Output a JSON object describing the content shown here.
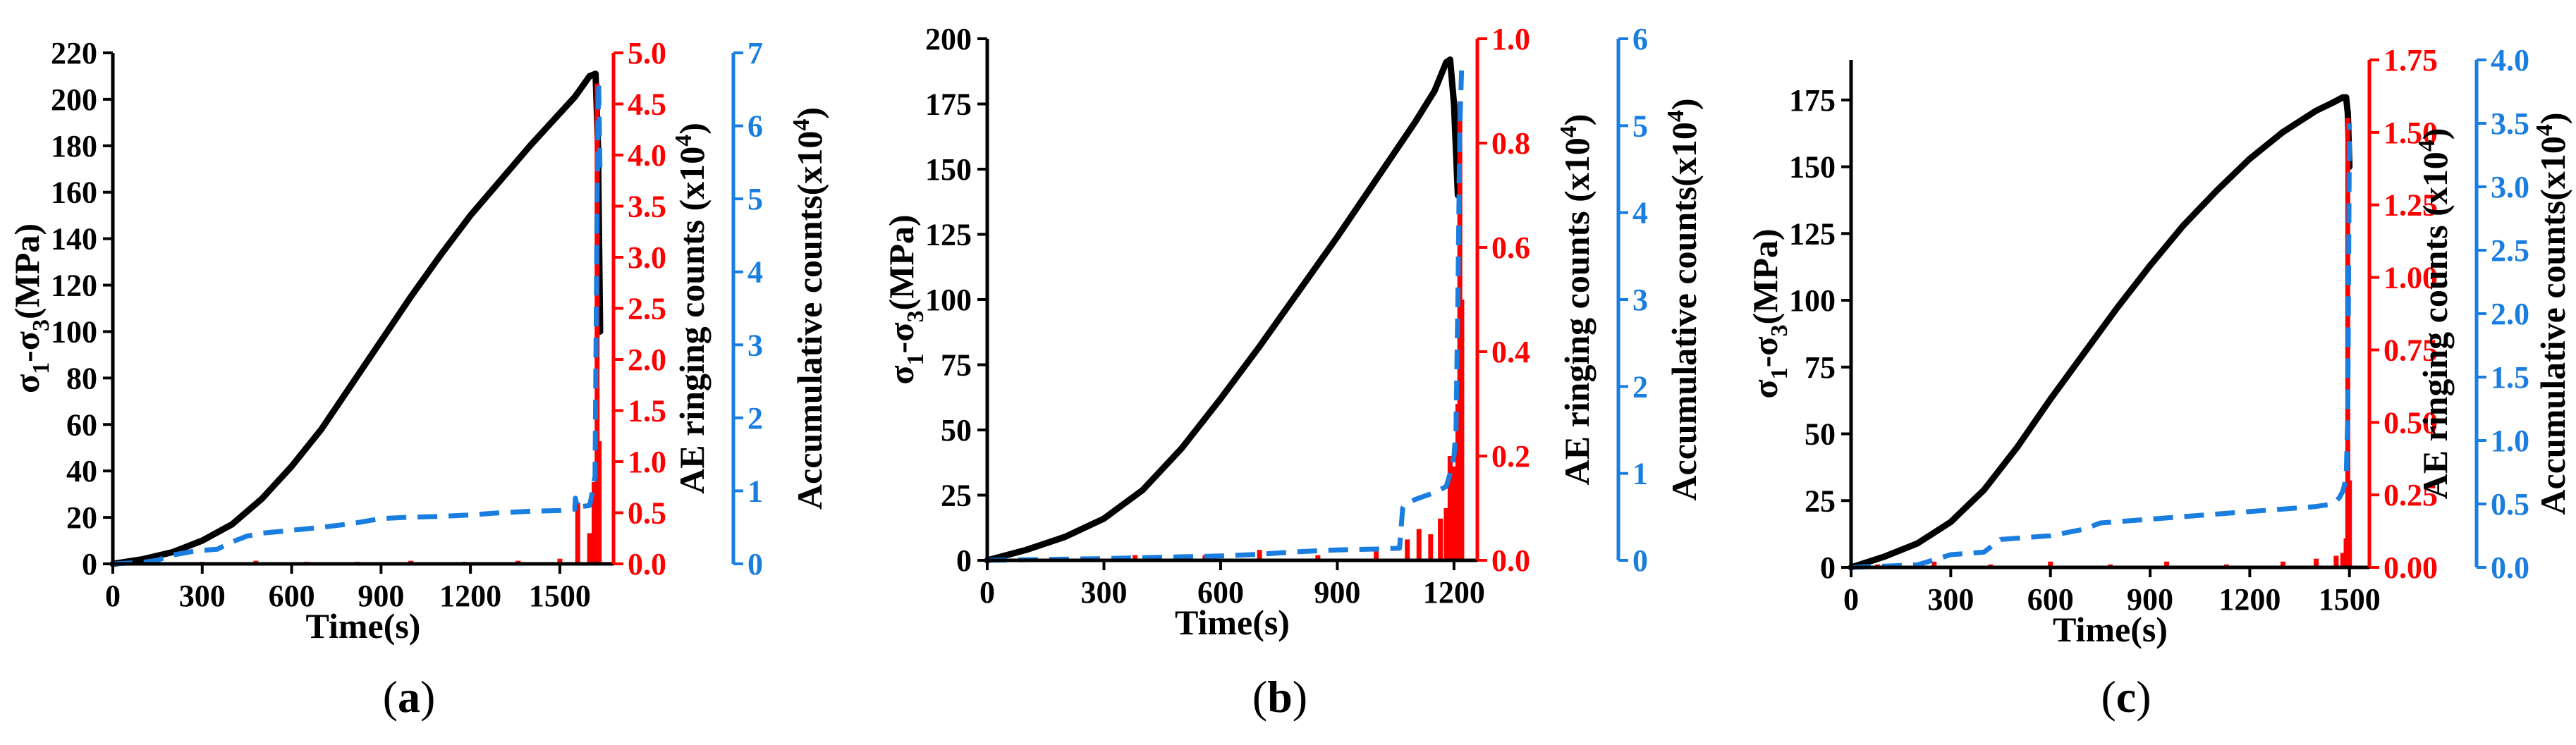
{
  "chart_data": [
    {
      "type": "line",
      "panel_label": "(a)",
      "xlabel": "Time(s)",
      "ylabel": "σ1-σ3(MPa)",
      "y2label": "AE ringing counts (x10^4)",
      "y3label": "Accumulative counts(x10^4)",
      "x_ticks": [
        "0",
        "300",
        "600",
        "900",
        "1200",
        "1500"
      ],
      "y_ticks": [
        "0",
        "20",
        "40",
        "60",
        "80",
        "100",
        "120",
        "140",
        "160",
        "180",
        "200",
        "220"
      ],
      "y2_ticks": [
        "0.0",
        "0.5",
        "1.0",
        "1.5",
        "2.0",
        "2.5",
        "3.0",
        "3.5",
        "4.0",
        "4.5",
        "5.0"
      ],
      "y3_ticks": [
        "0",
        "1",
        "2",
        "3",
        "4",
        "5",
        "6",
        "7"
      ],
      "xlim": [
        0,
        1680
      ],
      "ylim": [
        0,
        220
      ],
      "y2lim": [
        0,
        5.0
      ],
      "y3lim": [
        0,
        7
      ],
      "colors": {
        "stress": "#000000",
        "ringing": "#ff0000",
        "accumulative": "#1a7ee0"
      },
      "series": [
        {
          "name": "σ1-σ3",
          "axis": "left",
          "style": "solid",
          "color": "#000000",
          "x": [
            0,
            100,
            200,
            300,
            400,
            500,
            600,
            700,
            800,
            900,
            1000,
            1100,
            1200,
            1300,
            1400,
            1500,
            1550,
            1600,
            1620,
            1628,
            1635
          ],
          "y": [
            0,
            2,
            5,
            10,
            17,
            28,
            42,
            58,
            77,
            96,
            115,
            133,
            150,
            165,
            180,
            194,
            201,
            210,
            211,
            180,
            100
          ]
        },
        {
          "name": "AE ringing counts",
          "axis": "right1",
          "style": "spikes",
          "color": "#ff0000",
          "x": [
            120,
            300,
            480,
            650,
            820,
            1000,
            1180,
            1360,
            1500,
            1560,
            1600,
            1615,
            1625,
            1632
          ],
          "y": [
            0.02,
            0.02,
            0.03,
            0.02,
            0.02,
            0.03,
            0.02,
            0.03,
            0.05,
            0.6,
            0.3,
            0.8,
            4.7,
            1.2
          ]
        },
        {
          "name": "Accumulative counts",
          "axis": "right2",
          "style": "dashed",
          "color": "#1a7ee0",
          "x": [
            0,
            100,
            150,
            200,
            280,
            350,
            400,
            450,
            500,
            600,
            700,
            800,
            900,
            1000,
            1100,
            1200,
            1300,
            1400,
            1500,
            1550,
            1552,
            1560,
            1565,
            1600,
            1610,
            1618,
            1625,
            1630,
            1635
          ],
          "y": [
            0,
            0.02,
            0.05,
            0.12,
            0.18,
            0.2,
            0.3,
            0.38,
            0.42,
            0.46,
            0.5,
            0.55,
            0.62,
            0.64,
            0.65,
            0.67,
            0.7,
            0.72,
            0.73,
            0.75,
            0.9,
            0.75,
            0.78,
            0.8,
            1.0,
            1.2,
            5.0,
            6.6,
            5.3
          ]
        }
      ]
    },
    {
      "type": "line",
      "panel_label": "(b)",
      "xlabel": "Time(s)",
      "ylabel": "σ1-σ3(MPa)",
      "y2label": "AE ringing counts (x10^4)",
      "y3label": "Accumulative counts(x10^4)",
      "x_ticks": [
        "0",
        "300",
        "600",
        "900",
        "1200"
      ],
      "y_ticks": [
        "0",
        "25",
        "50",
        "75",
        "100",
        "125",
        "150",
        "175",
        "200"
      ],
      "y2_ticks": [
        "0.0",
        "0.2",
        "0.4",
        "0.6",
        "0.8",
        "1.0"
      ],
      "y3_ticks": [
        "0",
        "1",
        "2",
        "3",
        "4",
        "5",
        "6"
      ],
      "xlim": [
        0,
        1260
      ],
      "ylim": [
        0,
        200
      ],
      "y2lim": [
        0,
        1.0
      ],
      "y3lim": [
        0,
        6
      ],
      "colors": {
        "stress": "#000000",
        "ringing": "#ff0000",
        "accumulative": "#1a7ee0"
      },
      "series": [
        {
          "name": "σ1-σ3",
          "axis": "left",
          "style": "solid",
          "color": "#000000",
          "x": [
            0,
            100,
            200,
            300,
            400,
            500,
            600,
            700,
            800,
            900,
            1000,
            1100,
            1150,
            1180,
            1190,
            1200,
            1210
          ],
          "y": [
            0,
            4,
            9,
            16,
            27,
            43,
            62,
            82,
            103,
            124,
            146,
            168,
            180,
            191,
            192,
            175,
            140
          ]
        },
        {
          "name": "AE ringing counts",
          "axis": "right1",
          "style": "spikes",
          "color": "#ff0000",
          "x": [
            200,
            380,
            560,
            700,
            850,
            1000,
            1080,
            1110,
            1140,
            1165,
            1180,
            1190,
            1200,
            1210,
            1215,
            1220
          ],
          "y": [
            0.005,
            0.01,
            0.01,
            0.02,
            0.01,
            0.02,
            0.04,
            0.06,
            0.05,
            0.08,
            0.1,
            0.2,
            0.18,
            0.3,
            0.88,
            0.5
          ]
        },
        {
          "name": "Accumulative counts",
          "axis": "right2",
          "style": "dashed",
          "color": "#1a7ee0",
          "x": [
            0,
            300,
            600,
            700,
            800,
            900,
            1000,
            1060,
            1068,
            1075,
            1100,
            1150,
            1180,
            1190,
            1200,
            1205,
            1210,
            1215,
            1220
          ],
          "y": [
            0,
            0.02,
            0.05,
            0.07,
            0.1,
            0.12,
            0.13,
            0.14,
            0.6,
            0.65,
            0.7,
            0.78,
            0.85,
            1.0,
            1.2,
            1.5,
            3.0,
            5.0,
            5.7
          ]
        }
      ]
    },
    {
      "type": "line",
      "panel_label": "(c)",
      "xlabel": "Time(s)",
      "ylabel": "σ1-σ3(MPa)",
      "y2label": "AE ringing counts (x10^4)",
      "y3label": "Accumulative counts(x10^4)",
      "x_ticks": [
        "0",
        "300",
        "600",
        "900",
        "1200",
        "1500"
      ],
      "y_ticks": [
        "0",
        "25",
        "50",
        "75",
        "100",
        "125",
        "150",
        "175"
      ],
      "y2_ticks": [
        "0.00",
        "0.25",
        "0.50",
        "0.75",
        "1.00",
        "1.25",
        "1.50",
        "1.75"
      ],
      "y3_ticks": [
        "0.0",
        "0.5",
        "1.0",
        "1.5",
        "2.0",
        "2.5",
        "3.0",
        "3.5",
        "4.0"
      ],
      "xlim": [
        0,
        1560
      ],
      "ylim": [
        0,
        190
      ],
      "y2lim": [
        0,
        1.75
      ],
      "y3lim": [
        0,
        4.0
      ],
      "colors": {
        "stress": "#000000",
        "ringing": "#ff0000",
        "accumulative": "#1a7ee0"
      },
      "series": [
        {
          "name": "σ1-σ3",
          "axis": "left",
          "style": "solid",
          "color": "#000000",
          "x": [
            0,
            100,
            200,
            300,
            400,
            500,
            600,
            700,
            800,
            900,
            1000,
            1100,
            1200,
            1300,
            1400,
            1450,
            1480,
            1490,
            1495,
            1500
          ],
          "y": [
            0,
            4,
            9,
            17,
            29,
            45,
            63,
            80,
            97,
            113,
            128,
            141,
            153,
            163,
            171,
            174,
            176,
            176,
            170,
            150
          ]
        },
        {
          "name": "AE ringing counts",
          "axis": "right1",
          "style": "spikes",
          "color": "#ff0000",
          "x": [
            80,
            250,
            420,
            600,
            780,
            950,
            1130,
            1300,
            1400,
            1460,
            1480,
            1490,
            1495,
            1500
          ],
          "y": [
            0.01,
            0.02,
            0.01,
            0.02,
            0.01,
            0.02,
            0.01,
            0.02,
            0.03,
            0.04,
            0.05,
            0.1,
            1.55,
            0.3
          ]
        },
        {
          "name": "Accumulative counts",
          "axis": "right2",
          "style": "dashed",
          "color": "#1a7ee0",
          "x": [
            0,
            200,
            300,
            400,
            450,
            600,
            700,
            750,
            900,
            1000,
            1100,
            1200,
            1300,
            1400,
            1450,
            1470,
            1480,
            1490,
            1495,
            1500
          ],
          "y": [
            0,
            0.02,
            0.1,
            0.12,
            0.22,
            0.25,
            0.3,
            0.35,
            0.38,
            0.4,
            0.42,
            0.44,
            0.46,
            0.48,
            0.5,
            0.55,
            0.6,
            0.7,
            1.2,
            3.5
          ]
        }
      ]
    }
  ]
}
